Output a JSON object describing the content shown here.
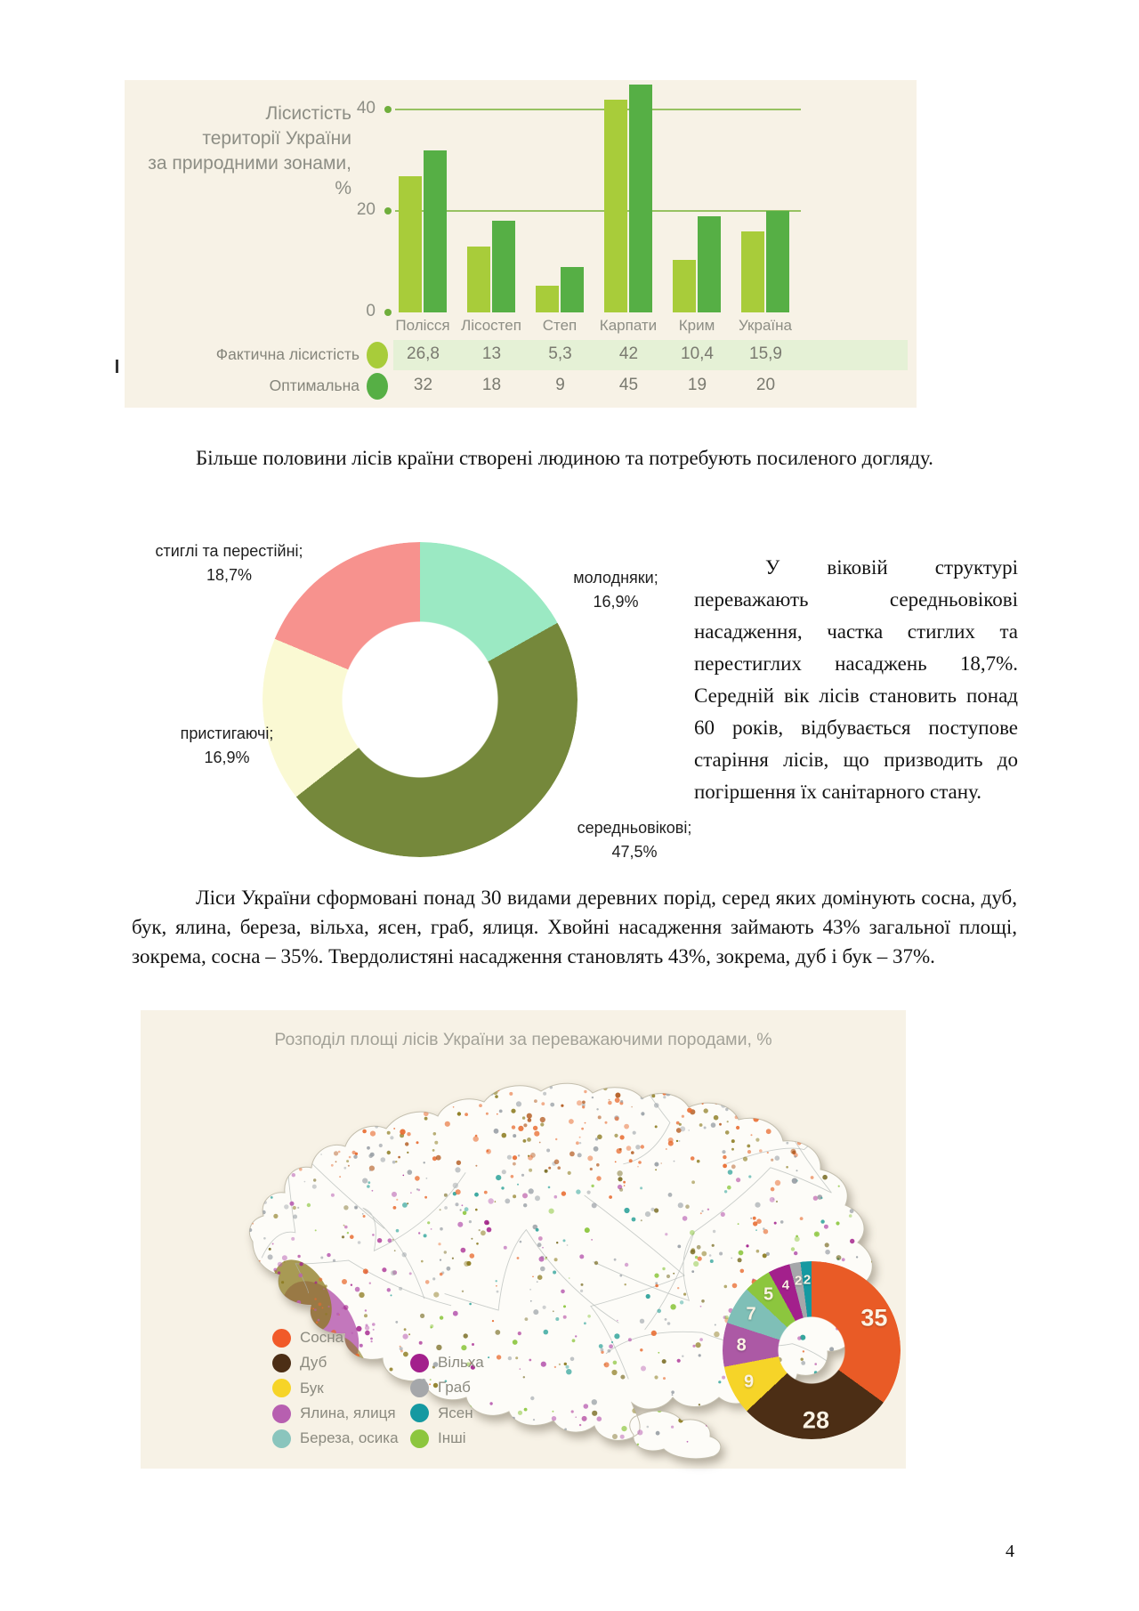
{
  "page_number": "4",
  "paragraphs": {
    "p1": "Більше половини лісів країни створені людиною та потребують посиленого догляду.",
    "p2": "У віковій структурі переважають середньовікові насадження, частка стиглих та перестиглих насаджень 18,7%. Середній вік лісів становить понад 60 років, відбувається поступове старіння лісів, що призводить до погіршення їх санітарного стану.",
    "p3": "Ліси України сформовані понад 30 видами деревних порід, серед яких домінують сосна, дуб, бук, ялина, береза, вільха, ясен, граб, ялиця. Хвойні насадження займають 43% загальної площі, зокрема, сосна – 35%. Твердолистяні насадження становлять 43%, зокрема, дуб і бук – 37%."
  },
  "chart_data": [
    {
      "id": "forest_cover_bars",
      "type": "bar",
      "title": "Лісистість території України за природними зонами, %",
      "title_lines": [
        "Лісистість",
        "території України",
        "за природними зонами, %"
      ],
      "categories": [
        "Полісся",
        "Лісостеп",
        "Степ",
        "Карпати",
        "Крим",
        "Україна"
      ],
      "series": [
        {
          "name": "Фактична лісистість",
          "color": "#A8CC3A",
          "values": [
            26.8,
            13,
            5.3,
            42,
            10.4,
            15.9
          ],
          "value_labels": [
            "26,8",
            "13",
            "5,3",
            "42",
            "10,4",
            "15,9"
          ]
        },
        {
          "name": "Оптимальна",
          "color": "#56AF45",
          "values": [
            32,
            18,
            9,
            45,
            19,
            20
          ],
          "value_labels": [
            "32",
            "18",
            "9",
            "45",
            "19",
            "20"
          ]
        }
      ],
      "ylim": [
        0,
        40
      ],
      "y_ticks": [
        {
          "label": "40",
          "value": 40
        },
        {
          "label": "20",
          "value": 20
        },
        {
          "label": "0",
          "value": 0
        }
      ],
      "grid": "horizontal-green",
      "legend_position": "table-left-of-rows"
    },
    {
      "id": "age_structure_donut",
      "type": "pie",
      "donut": true,
      "start_angle_deg": 0,
      "direction": "clockwise",
      "slices": [
        {
          "label": "молодняки",
          "label_line": "молодняки;",
          "value": 16.9,
          "value_label": "16,9%",
          "color": "#9BE9C3"
        },
        {
          "label": "середньовікові",
          "label_line": "середньовікові;",
          "value": 47.5,
          "value_label": "47,5%",
          "color": "#75883B"
        },
        {
          "label": "пристигаючі",
          "label_line": "пристигаючі;",
          "value": 16.9,
          "value_label": "16,9%",
          "color": "#FAF9D3"
        },
        {
          "label": "стиглі та перестійні",
          "label_line": "стиглі та перестійні;",
          "value": 18.7,
          "value_label": "18,7%",
          "color": "#F7928E"
        }
      ]
    },
    {
      "id": "species_donut_map",
      "type": "pie",
      "donut": true,
      "title": "Розподіл площі лісів України за переважаючими породами, %",
      "slices": [
        {
          "label": "Сосна",
          "value": 35,
          "color": "#E95B26"
        },
        {
          "label": "Дуб",
          "value": 28,
          "color": "#4C2E15"
        },
        {
          "label": "Бук",
          "value": 9,
          "color": "#F6D428"
        },
        {
          "label": "Ялина, ялиця",
          "value": 8,
          "color": "#AC59A5"
        },
        {
          "label": "Береза, осика",
          "value": 7,
          "color": "#7FBFB7"
        },
        {
          "label": "Інші",
          "value": 5,
          "color": "#8CC63E"
        },
        {
          "label": "Вільха",
          "value": 4,
          "color": "#A3208C"
        },
        {
          "label": "Граб",
          "value": 2,
          "color": "#A5A7AA"
        },
        {
          "label": "Ясен",
          "value": 2,
          "color": "#1599A1"
        }
      ],
      "legend": [
        [
          {
            "label": "Сосна",
            "color": "#F15A29"
          },
          {
            "label": "Дуб",
            "color": "#4C2E15"
          },
          {
            "label": "Бук",
            "color": "#F6D428"
          },
          {
            "label": "Ялина, ялиця",
            "color": "#B75FB0"
          },
          {
            "label": "Береза, осика",
            "color": "#8AC5BD"
          }
        ],
        [
          {
            "label": "Вільха",
            "color": "#A3208C"
          },
          {
            "label": "Граб",
            "color": "#A5A7AA"
          },
          {
            "label": "Ясен",
            "color": "#1599A1"
          },
          {
            "label": "Інші",
            "color": "#8CC63E"
          }
        ]
      ]
    }
  ]
}
